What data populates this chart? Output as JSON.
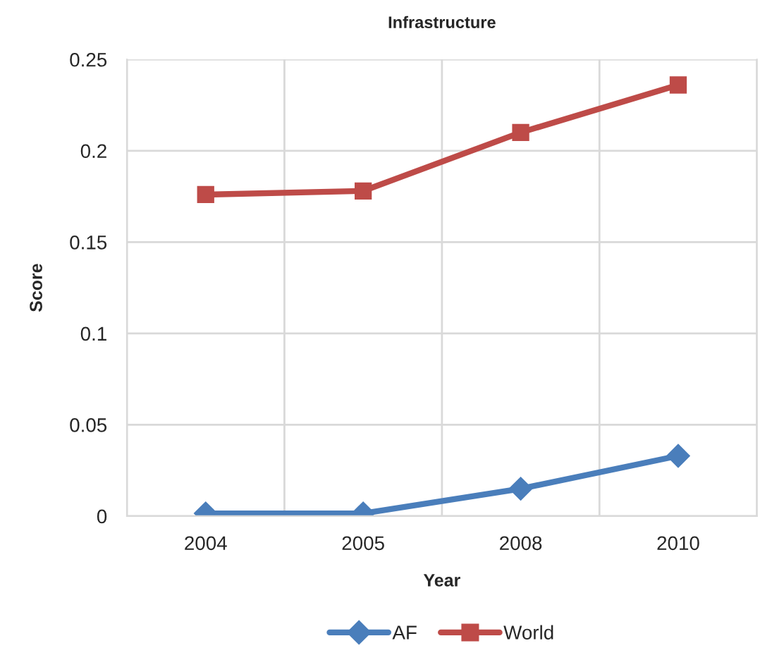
{
  "chart_data": {
    "type": "line",
    "title": "Infrastructure",
    "xlabel": "Year",
    "ylabel": "Score",
    "categories": [
      "2004",
      "2005",
      "2008",
      "2010"
    ],
    "series": [
      {
        "name": "AF",
        "color": "#4a7ebb",
        "marker": "diamond",
        "values": [
          0.0015,
          0.0015,
          0.015,
          0.033
        ]
      },
      {
        "name": "World",
        "color": "#be4b48",
        "marker": "square",
        "values": [
          0.176,
          0.178,
          0.21,
          0.236
        ]
      }
    ],
    "ylim": [
      0,
      0.25
    ],
    "yticks": [
      0,
      0.05,
      0.1,
      0.15,
      0.2,
      0.25
    ],
    "grid": true,
    "legend": "bottom",
    "line_style": "solid"
  }
}
